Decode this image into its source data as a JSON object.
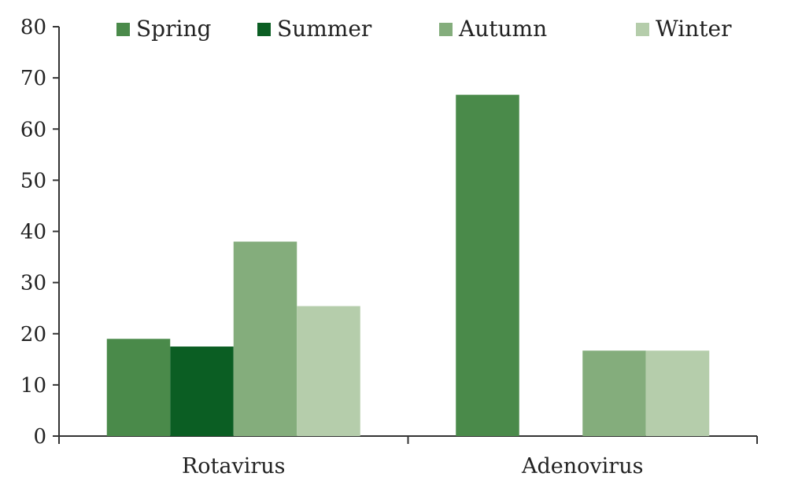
{
  "chart_data": {
    "type": "bar",
    "title": "",
    "xlabel": "",
    "ylabel": "",
    "categories": [
      "Rotavirus",
      "Adenovirus"
    ],
    "ylim": [
      0,
      80
    ],
    "yticks": [
      0,
      10,
      20,
      30,
      40,
      50,
      60,
      70,
      80
    ],
    "grid": false,
    "legend_position": "top",
    "series": [
      {
        "name": "Spring",
        "color": "#4a8a4a",
        "values": [
          19,
          66.7
        ]
      },
      {
        "name": "Summer",
        "color": "#0b5e23",
        "values": [
          17.5,
          0
        ]
      },
      {
        "name": "Autumn",
        "color": "#84ad7c",
        "values": [
          38,
          16.7
        ]
      },
      {
        "name": "Winter",
        "color": "#b5cdab",
        "values": [
          25.4,
          16.7
        ]
      }
    ]
  }
}
